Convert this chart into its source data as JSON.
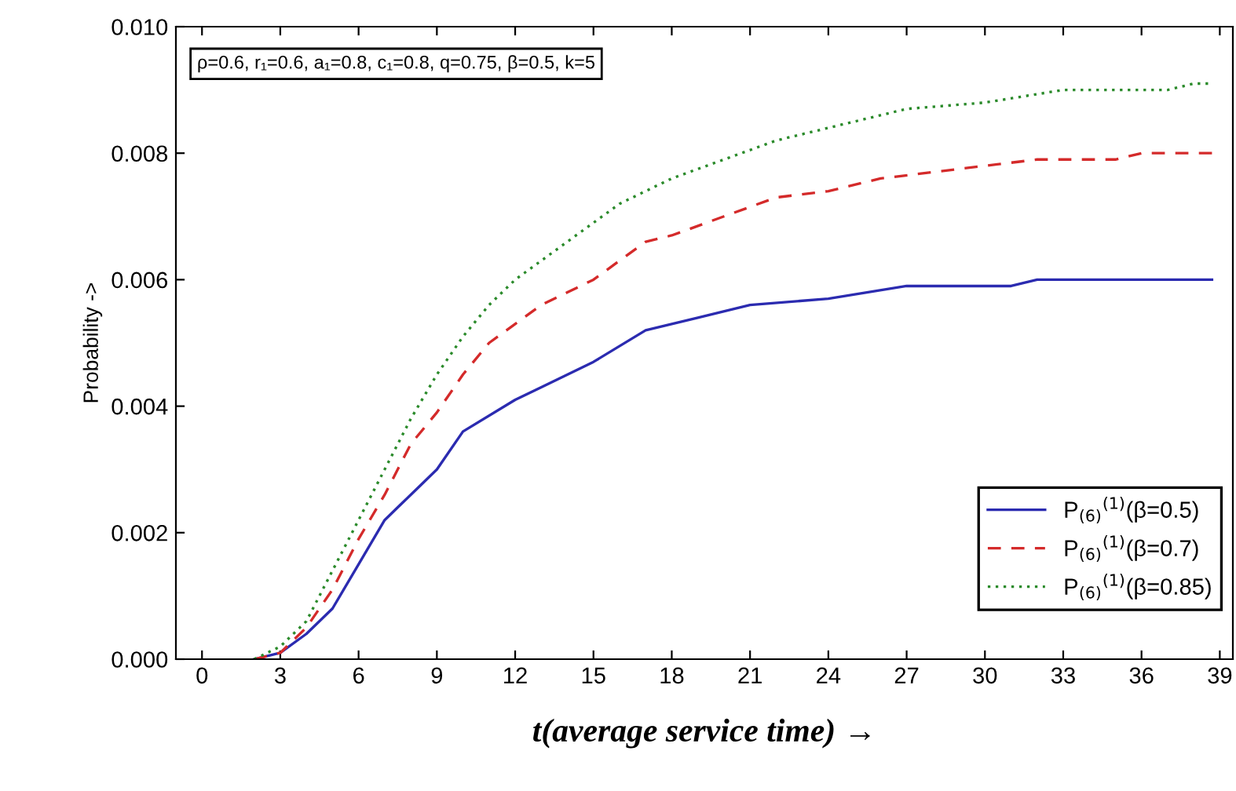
{
  "chart_data": {
    "type": "line",
    "xlabel": "t(average service time) →",
    "ylabel": "Probability ->",
    "annotations": [
      "ρ=0.6, r₁=0.6, a₁=0.8, c₁=0.8, q=0.75, β=0.5, k=5"
    ],
    "xlim": [
      -1,
      39.5
    ],
    "ylim": [
      0,
      0.01
    ],
    "xticks": [
      0,
      3,
      6,
      9,
      12,
      15,
      18,
      21,
      24,
      27,
      30,
      33,
      36,
      39
    ],
    "yticks": [
      {
        "value": 0,
        "label": "0.000"
      },
      {
        "value": 0.002,
        "label": "0.002"
      },
      {
        "value": 0.004,
        "label": "0.004"
      },
      {
        "value": 0.006,
        "label": "0.006"
      },
      {
        "value": 0.008,
        "label": "0.008"
      },
      {
        "value": 0.01,
        "label": "0.010"
      }
    ],
    "grid": false,
    "legend": "bottom right",
    "marker": "none",
    "series": [
      {
        "name": "P$_{(6)}$$^{(1)}$(β=0.5)",
        "color": "#2b2bb0",
        "line_style": "solid",
        "x": [
          2,
          3,
          4,
          5,
          6,
          7,
          8,
          9,
          10,
          12,
          13,
          15,
          17,
          19,
          21,
          24,
          27,
          31,
          32,
          38.7
        ],
        "values": [
          0,
          0.0001,
          0.0004,
          0.0008,
          0.0015,
          0.0022,
          0.0026,
          0.003,
          0.0036,
          0.0041,
          0.0043,
          0.0047,
          0.0052,
          0.0054,
          0.0056,
          0.0057,
          0.0059,
          0.0059,
          0.006,
          0.006
        ]
      },
      {
        "name": "P$_{(6)}$$^{(1)}$(β=0.7)",
        "color": "#d42a2a",
        "line_style": "dashed",
        "x": [
          2,
          3,
          4,
          5,
          6,
          7,
          8,
          9,
          10,
          11,
          12,
          13,
          14,
          15,
          16,
          17,
          18,
          20,
          22,
          24,
          26,
          28,
          30,
          32,
          35,
          36,
          38.7
        ],
        "values": [
          0,
          0.0001,
          0.0005,
          0.0011,
          0.0019,
          0.0026,
          0.0034,
          0.0039,
          0.0045,
          0.005,
          0.0053,
          0.0056,
          0.0058,
          0.006,
          0.0063,
          0.0066,
          0.0067,
          0.007,
          0.0073,
          0.0074,
          0.0076,
          0.0077,
          0.0078,
          0.0079,
          0.0079,
          0.008,
          0.008
        ]
      },
      {
        "name": "P$_{(6)}$$^{(1)}$(β=0.85)",
        "color": "#2a8a2a",
        "line_style": "dotted",
        "x": [
          2,
          3,
          4,
          5,
          6,
          7,
          8,
          9,
          10,
          11,
          12,
          13,
          14,
          15,
          16,
          18,
          20,
          22,
          24,
          26,
          27,
          30,
          33,
          37,
          38,
          38.7
        ],
        "values": [
          0,
          0.0002,
          0.0006,
          0.0014,
          0.0022,
          0.003,
          0.0038,
          0.0045,
          0.0051,
          0.0056,
          0.006,
          0.0063,
          0.0066,
          0.0069,
          0.0072,
          0.0076,
          0.0079,
          0.0082,
          0.0084,
          0.0086,
          0.0087,
          0.0088,
          0.009,
          0.009,
          0.0091,
          0.0091
        ]
      }
    ]
  }
}
